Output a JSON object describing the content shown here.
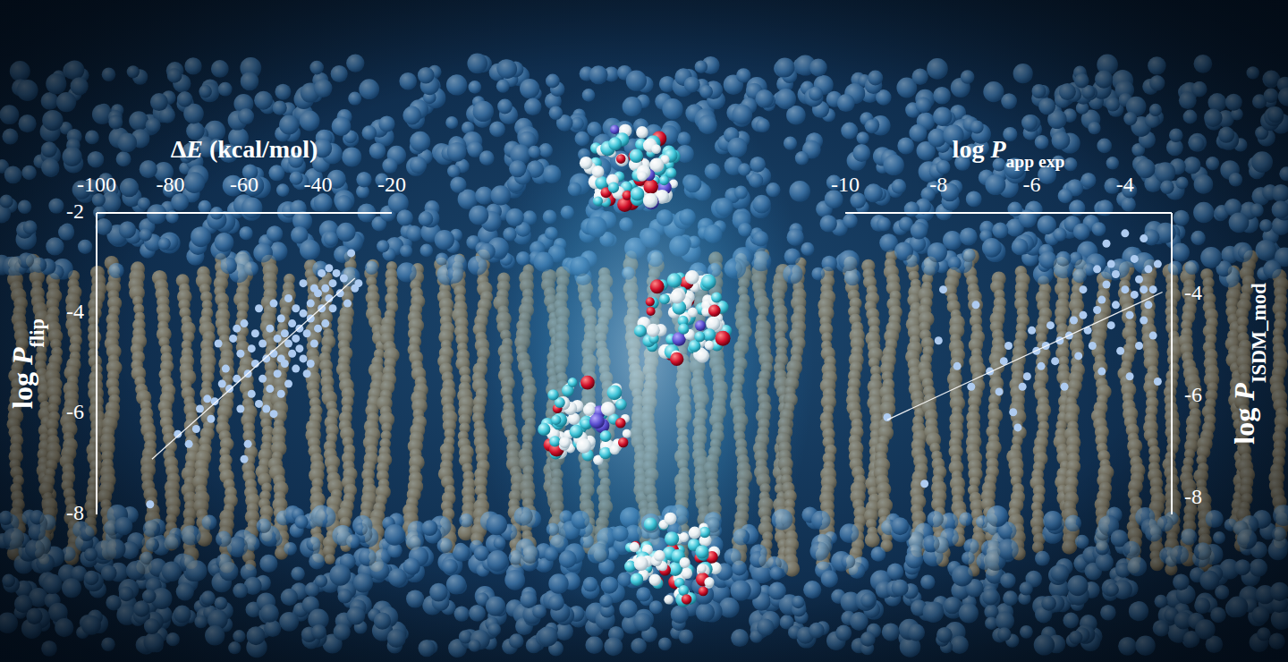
{
  "chart_data": [
    {
      "type": "scatter",
      "xlabel": [
        {
          "text": "Δ"
        },
        {
          "text": "E",
          "italic": true
        },
        {
          "text": " (kcal/mol)"
        }
      ],
      "ylabel": [
        {
          "text": "log "
        },
        {
          "text": "P",
          "italic": true
        },
        {
          "text": "flip",
          "sub": true
        }
      ],
      "xlim": [
        -100,
        -20
      ],
      "xticks": [
        -100,
        -80,
        -60,
        -40,
        -20
      ],
      "ylim": [
        -8,
        -2
      ],
      "yticks": [
        -2,
        -4,
        -6,
        -8
      ],
      "color": "#aecbf0",
      "marker": "circle",
      "x": [
        -85.5,
        -78,
        -75,
        -73,
        -72,
        -70,
        -69,
        -68,
        -67,
        -66,
        -65,
        -64,
        -63,
        -62,
        -61,
        -61,
        -60,
        -60,
        -59,
        -59,
        -58,
        -58,
        -57,
        -57,
        -56,
        -56,
        -55,
        -55,
        -54,
        -54,
        -53,
        -53,
        -52,
        -52,
        -52,
        -51,
        -51,
        -50,
        -50,
        -50,
        -49,
        -49,
        -48,
        -48,
        -48,
        -47,
        -47,
        -46,
        -46,
        -46,
        -45,
        -45,
        -44,
        -44,
        -44,
        -43,
        -43,
        -42,
        -42,
        -41,
        -41,
        -40,
        -40,
        -39,
        -39,
        -38,
        -38,
        -37,
        -37,
        -36,
        -36,
        -35,
        -34,
        -33,
        -32,
        -31,
        -30,
        -29,
        -42,
        -62
      ],
      "values": [
        -7.8,
        -6.4,
        -6.6,
        -6.3,
        -5.9,
        -5.7,
        -6.1,
        -5.75,
        -4.6,
        -5.4,
        -5.1,
        -5.5,
        -4.5,
        -5.3,
        -4.8,
        -5.9,
        -6.9,
        -4.2,
        -5.2,
        -6.6,
        -4.7,
        -5.6,
        -4.4,
        -5.0,
        -3.9,
        -5.8,
        -4.6,
        -5.3,
        -4.9,
        -5.9,
        -4.3,
        -5.5,
        -3.8,
        -4.8,
        -6.0,
        -4.5,
        -5.2,
        -4.1,
        -4.9,
        -5.6,
        -4.4,
        -5.0,
        -3.7,
        -4.6,
        -5.4,
        -4.2,
        -4.8,
        -3.9,
        -4.5,
        -5.1,
        -4.3,
        -4.7,
        -3.4,
        -4.0,
        -4.9,
        -4.4,
        -5.2,
        -3.8,
        -4.1,
        -3.5,
        -4.6,
        -3.6,
        -4.3,
        -3.2,
        -3.9,
        -3.5,
        -4.2,
        -3.1,
        -3.7,
        -3.4,
        -3.9,
        -3.2,
        -3.6,
        -3.3,
        -3.8,
        -2.8,
        -3.5,
        -3.4,
        -5.0,
        -4.3
      ],
      "trend_line": {
        "x": [
          -85,
          -30
        ],
        "values": [
          -6.9,
          -3.3
        ]
      }
    },
    {
      "type": "scatter",
      "xlabel": [
        {
          "text": "log "
        },
        {
          "text": "P",
          "italic": true
        },
        {
          "text": "app exp",
          "sub": true
        }
      ],
      "ylabel": [
        {
          "text": "log "
        },
        {
          "text": "P",
          "italic": true
        },
        {
          "text": "ISDM_mod",
          "sub": true
        }
      ],
      "xlim": [
        -10,
        -3
      ],
      "xticks": [
        -10,
        -8,
        -6,
        -4
      ],
      "ylim": [
        -8.3,
        -2.4
      ],
      "yticks": [
        -4,
        -6,
        -8
      ],
      "color": "#aecbf0",
      "marker": "circle",
      "x": [
        -9.1,
        -8.3,
        -8.0,
        -7.9,
        -7.6,
        -7.3,
        -7.2,
        -6.9,
        -6.7,
        -6.6,
        -6.5,
        -6.4,
        -6.3,
        -6.2,
        -6.1,
        -6.0,
        -5.9,
        -5.8,
        -5.7,
        -5.6,
        -5.5,
        -5.4,
        -5.3,
        -5.2,
        -5.1,
        -5.0,
        -4.9,
        -4.9,
        -4.8,
        -4.7,
        -4.6,
        -4.6,
        -4.5,
        -4.5,
        -4.4,
        -4.4,
        -4.3,
        -4.2,
        -4.2,
        -4.1,
        -4.0,
        -4.0,
        -3.9,
        -3.9,
        -3.8,
        -3.8,
        -3.7,
        -3.7,
        -3.6,
        -3.6,
        -3.5,
        -3.5,
        -3.4,
        -3.4,
        -3.3,
        -3.3,
        -3.6,
        -4.3
      ],
      "values": [
        -6.4,
        -7.7,
        -4.9,
        -3.9,
        -5.4,
        -5.8,
        -4.2,
        -5.5,
        -5.9,
        -5.3,
        -5.0,
        -6.3,
        -6.6,
        -5.8,
        -5.6,
        -4.7,
        -5.1,
        -5.4,
        -5.0,
        -4.6,
        -5.3,
        -4.9,
        -5.8,
        -4.8,
        -4.5,
        -5.2,
        -4.4,
        -3.9,
        -4.7,
        -5.0,
        -3.5,
        -4.3,
        -4.1,
        -5.5,
        -3.0,
        -3.8,
        -4.6,
        -3.6,
        -4.2,
        -5.1,
        -2.8,
        -3.9,
        -4.4,
        -5.6,
        -3.3,
        -4.0,
        -3.7,
        -5.0,
        -4.5,
        -2.9,
        -3.5,
        -4.2,
        -3.9,
        -4.8,
        -3.4,
        -5.7,
        -3.9,
        -3.4
      ],
      "trend_line": {
        "x": [
          -9.1,
          -3.2
        ],
        "values": [
          -6.45,
          -3.95
        ]
      }
    }
  ]
}
